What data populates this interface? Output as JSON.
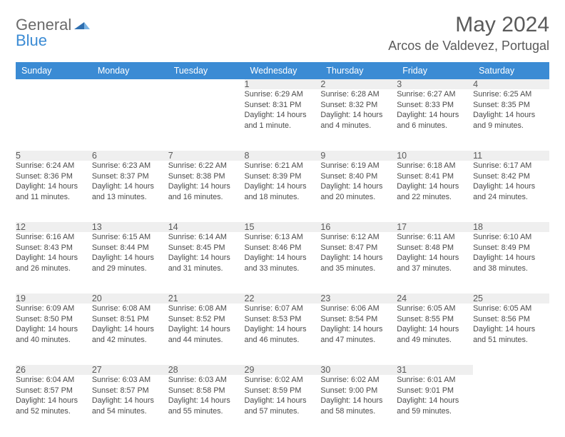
{
  "brand": {
    "word1": "General",
    "word2": "Blue"
  },
  "title": "May 2024",
  "location": "Arcos de Valdevez, Portugal",
  "colors": {
    "header_bg": "#3b8bd4",
    "header_text": "#ffffff",
    "daynum_bg": "#efefef",
    "row_divider": "#2a5e8a",
    "text": "#4a4a4a",
    "title_text": "#5a5a5a"
  },
  "weekdays": [
    "Sunday",
    "Monday",
    "Tuesday",
    "Wednesday",
    "Thursday",
    "Friday",
    "Saturday"
  ],
  "weeks": [
    {
      "nums": [
        "",
        "",
        "",
        "1",
        "2",
        "3",
        "4"
      ],
      "cells": [
        null,
        null,
        null,
        {
          "sunrise": "6:29 AM",
          "sunset": "8:31 PM",
          "daylight": "14 hours and 1 minute."
        },
        {
          "sunrise": "6:28 AM",
          "sunset": "8:32 PM",
          "daylight": "14 hours and 4 minutes."
        },
        {
          "sunrise": "6:27 AM",
          "sunset": "8:33 PM",
          "daylight": "14 hours and 6 minutes."
        },
        {
          "sunrise": "6:25 AM",
          "sunset": "8:35 PM",
          "daylight": "14 hours and 9 minutes."
        }
      ]
    },
    {
      "nums": [
        "5",
        "6",
        "7",
        "8",
        "9",
        "10",
        "11"
      ],
      "cells": [
        {
          "sunrise": "6:24 AM",
          "sunset": "8:36 PM",
          "daylight": "14 hours and 11 minutes."
        },
        {
          "sunrise": "6:23 AM",
          "sunset": "8:37 PM",
          "daylight": "14 hours and 13 minutes."
        },
        {
          "sunrise": "6:22 AM",
          "sunset": "8:38 PM",
          "daylight": "14 hours and 16 minutes."
        },
        {
          "sunrise": "6:21 AM",
          "sunset": "8:39 PM",
          "daylight": "14 hours and 18 minutes."
        },
        {
          "sunrise": "6:19 AM",
          "sunset": "8:40 PM",
          "daylight": "14 hours and 20 minutes."
        },
        {
          "sunrise": "6:18 AM",
          "sunset": "8:41 PM",
          "daylight": "14 hours and 22 minutes."
        },
        {
          "sunrise": "6:17 AM",
          "sunset": "8:42 PM",
          "daylight": "14 hours and 24 minutes."
        }
      ]
    },
    {
      "nums": [
        "12",
        "13",
        "14",
        "15",
        "16",
        "17",
        "18"
      ],
      "cells": [
        {
          "sunrise": "6:16 AM",
          "sunset": "8:43 PM",
          "daylight": "14 hours and 26 minutes."
        },
        {
          "sunrise": "6:15 AM",
          "sunset": "8:44 PM",
          "daylight": "14 hours and 29 minutes."
        },
        {
          "sunrise": "6:14 AM",
          "sunset": "8:45 PM",
          "daylight": "14 hours and 31 minutes."
        },
        {
          "sunrise": "6:13 AM",
          "sunset": "8:46 PM",
          "daylight": "14 hours and 33 minutes."
        },
        {
          "sunrise": "6:12 AM",
          "sunset": "8:47 PM",
          "daylight": "14 hours and 35 minutes."
        },
        {
          "sunrise": "6:11 AM",
          "sunset": "8:48 PM",
          "daylight": "14 hours and 37 minutes."
        },
        {
          "sunrise": "6:10 AM",
          "sunset": "8:49 PM",
          "daylight": "14 hours and 38 minutes."
        }
      ]
    },
    {
      "nums": [
        "19",
        "20",
        "21",
        "22",
        "23",
        "24",
        "25"
      ],
      "cells": [
        {
          "sunrise": "6:09 AM",
          "sunset": "8:50 PM",
          "daylight": "14 hours and 40 minutes."
        },
        {
          "sunrise": "6:08 AM",
          "sunset": "8:51 PM",
          "daylight": "14 hours and 42 minutes."
        },
        {
          "sunrise": "6:08 AM",
          "sunset": "8:52 PM",
          "daylight": "14 hours and 44 minutes."
        },
        {
          "sunrise": "6:07 AM",
          "sunset": "8:53 PM",
          "daylight": "14 hours and 46 minutes."
        },
        {
          "sunrise": "6:06 AM",
          "sunset": "8:54 PM",
          "daylight": "14 hours and 47 minutes."
        },
        {
          "sunrise": "6:05 AM",
          "sunset": "8:55 PM",
          "daylight": "14 hours and 49 minutes."
        },
        {
          "sunrise": "6:05 AM",
          "sunset": "8:56 PM",
          "daylight": "14 hours and 51 minutes."
        }
      ]
    },
    {
      "nums": [
        "26",
        "27",
        "28",
        "29",
        "30",
        "31",
        ""
      ],
      "cells": [
        {
          "sunrise": "6:04 AM",
          "sunset": "8:57 PM",
          "daylight": "14 hours and 52 minutes."
        },
        {
          "sunrise": "6:03 AM",
          "sunset": "8:57 PM",
          "daylight": "14 hours and 54 minutes."
        },
        {
          "sunrise": "6:03 AM",
          "sunset": "8:58 PM",
          "daylight": "14 hours and 55 minutes."
        },
        {
          "sunrise": "6:02 AM",
          "sunset": "8:59 PM",
          "daylight": "14 hours and 57 minutes."
        },
        {
          "sunrise": "6:02 AM",
          "sunset": "9:00 PM",
          "daylight": "14 hours and 58 minutes."
        },
        {
          "sunrise": "6:01 AM",
          "sunset": "9:01 PM",
          "daylight": "14 hours and 59 minutes."
        },
        null
      ]
    }
  ],
  "labels": {
    "sunrise": "Sunrise:",
    "sunset": "Sunset:",
    "daylight": "Daylight:"
  }
}
